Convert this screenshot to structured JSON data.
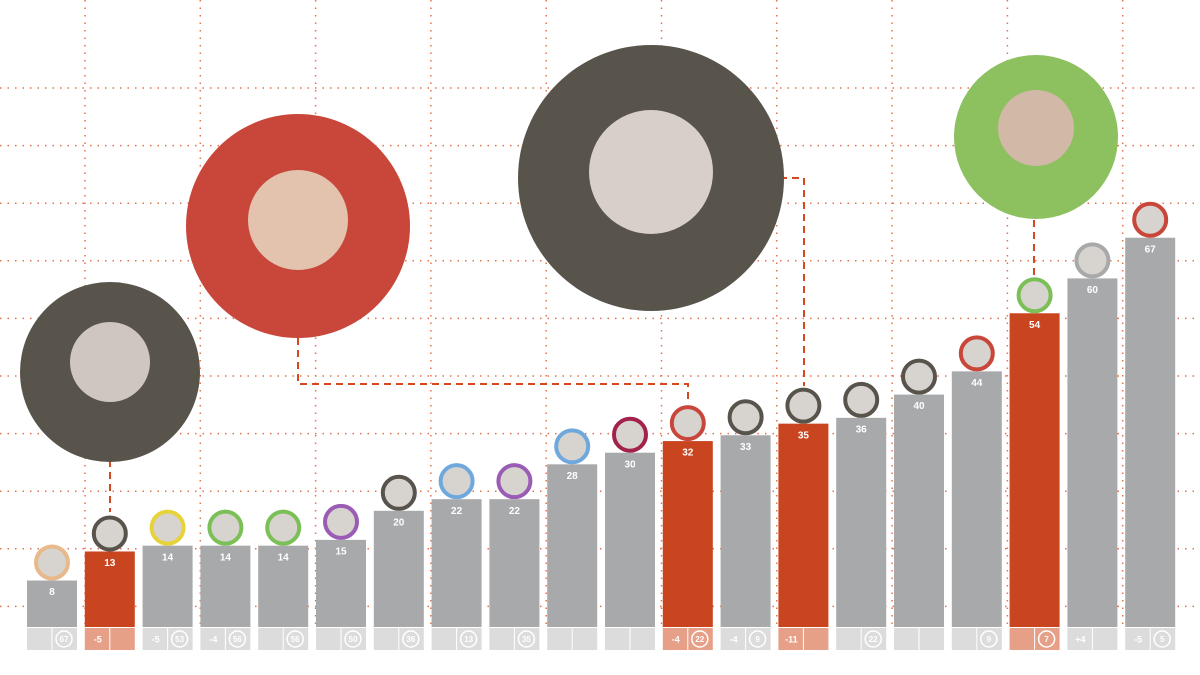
{
  "chart_data": {
    "type": "bar",
    "values": [
      8,
      13,
      14,
      14,
      14,
      15,
      20,
      22,
      22,
      28,
      30,
      32,
      33,
      35,
      36,
      40,
      44,
      54,
      60,
      67
    ],
    "colors": [
      "#a8a9ab",
      "#c8451f",
      "#a8a9ab",
      "#a8a9ab",
      "#a8a9ab",
      "#a8a9ab",
      "#a8a9ab",
      "#a8a9ab",
      "#a8a9ab",
      "#a8a9ab",
      "#a8a9ab",
      "#c8451f",
      "#a8a9ab",
      "#c8451f",
      "#a8a9ab",
      "#a8a9ab",
      "#a8a9ab",
      "#c8451f",
      "#a8a9ab",
      "#a8a9ab"
    ],
    "ring_colors": [
      "#e8b98a",
      "#58544c",
      "#e6d23a",
      "#7bbf57",
      "#7bbf57",
      "#9a5cb4",
      "#58544c",
      "#6fa8dc",
      "#9a5cb4",
      "#6fa8dc",
      "#a3224b",
      "#c8473a",
      "#58544c",
      "#58544c",
      "#58544c",
      "#58544c",
      "#c8473a",
      "#7bbf57",
      "#a8a9ab",
      "#c8473a"
    ],
    "changes": [
      null,
      -5,
      -5,
      -4,
      null,
      null,
      null,
      null,
      null,
      null,
      null,
      -4,
      -4,
      -11,
      null,
      null,
      null,
      null,
      {
        "value": 4,
        "label": "+4"
      },
      -5
    ],
    "ranks": [
      67,
      null,
      53,
      56,
      56,
      50,
      36,
      13,
      35,
      null,
      null,
      22,
      9,
      null,
      22,
      null,
      9,
      7,
      null,
      5
    ]
  }
}
